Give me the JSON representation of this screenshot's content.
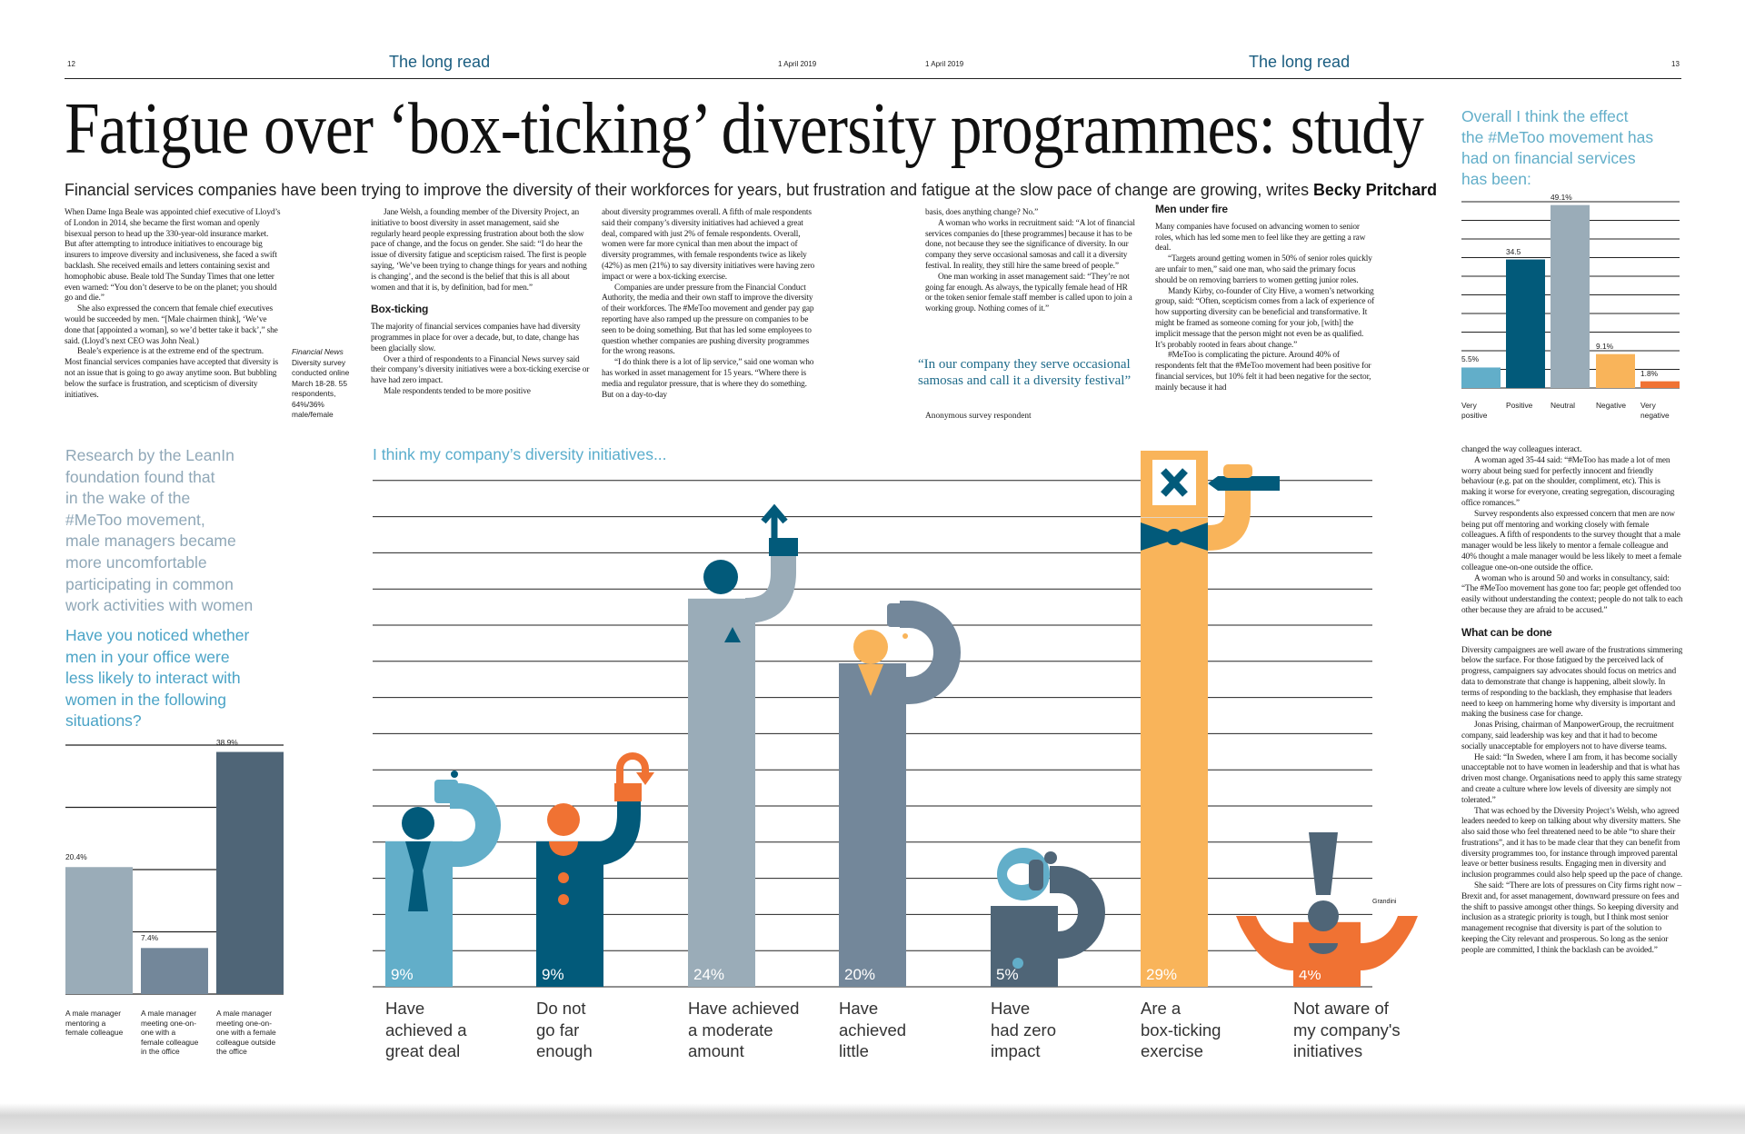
{
  "header": {
    "left_page_number": "12",
    "right_page_number": "13",
    "section_left": "The long read",
    "section_right": "The long read",
    "date_left": "1 April 2019",
    "date_right": "1 April 2019"
  },
  "article": {
    "headline": "Fatigue over ‘box-ticking’ diversity programmes: study",
    "standfirst": "Financial services companies have been trying to improve the diversity of their workforces for years, but frustration and fatigue at the slow pace of change are growing, writes",
    "byline": "Becky Pritchard",
    "survey_note": {
      "source": "Financial News",
      "text": "Diversity survey conducted online March 18-28. 55 respondents, 64%/36% male/female"
    },
    "columns": [
      {
        "blocks": [
          {
            "type": "p",
            "text": "When Dame Inga Beale was appointed chief executive of Lloyd’s of London in 2014, she became the first woman and openly bisexual person to head up the 330-year-old insurance market. But after attempting to introduce initiatives to encourage big insurers to improve diversity and inclusiveness, she faced a swift backlash. She received emails and letters containing sexist and homophobic abuse. Beale told The Sunday Times that one letter even warned: “You don’t deserve to be on the planet; you should go and die.”",
            "noindent": true
          },
          {
            "type": "p",
            "text": "She also expressed the concern that female chief executives would be succeeded by men. “[Male chairmen think], ‘We’ve done that [appointed a woman], so we’d better take it back’,” she said. (Lloyd’s next CEO was John Neal.)"
          },
          {
            "type": "p",
            "text": "Beale’s experience is at the extreme end of the spectrum. Most financial services companies have accepted that diversity is not an issue that is going to go away anytime soon. But bubbling below the surface is frustration, and scepticism of diversity initiatives."
          }
        ]
      },
      {
        "blocks": [
          {
            "type": "p",
            "text": "Jane Welsh, a founding member of the Diversity Project, an initiative to boost diversity in asset management, said she regularly heard people expressing frustration about both the slow pace of change, and the focus on gender. She said: “I do hear the issue of diversity fatigue and scepticism raised. The first is people saying, ‘We’ve been trying to change things for years and nothing is changing’, and the second is the belief that this is all about women and that it is, by definition, bad for men.”"
          },
          {
            "type": "h",
            "text": "Box-ticking"
          },
          {
            "type": "p",
            "text": "The majority of financial services companies have had diversity programmes in place for over a decade, but, to date, change has been glacially slow.",
            "noindent": true
          },
          {
            "type": "p",
            "text": "Over a third of respondents to a Financial News survey said their company’s diversity initiatives were a box-ticking exercise or have had zero impact."
          },
          {
            "type": "p",
            "text": "Male respondents tended to be more positive"
          }
        ]
      },
      {
        "blocks": [
          {
            "type": "p",
            "text": "about diversity programmes overall. A fifth of male respondents said their company’s diversity initiatives had achieved a great deal, compared with just 2% of female respondents. Overall, women were far more cynical than men about the impact of diversity programmes, with female respondents twice as likely (42%) as men (21%) to say diversity initiatives were having zero impact or were a box-ticking exercise.",
            "noindent": true
          },
          {
            "type": "p",
            "text": "Companies are under pressure from the Financial Conduct Authority, the media and their own staff to improve the diversity of their workforces. The #MeToo movement and gender pay gap reporting have also ramped up the pressure on companies to be seen to be doing something. But that has led some employees to question whether companies are pushing diversity programmes for the wrong reasons."
          },
          {
            "type": "p",
            "text": "“I do think there is a lot of lip service,” said one woman who has worked in asset management for 15 years. “Where there is media and regulator pressure, that is where they do something. But on a day-to-day"
          }
        ]
      },
      {
        "blocks": [
          {
            "type": "p",
            "text": "basis, does anything change? No.”",
            "noindent": true
          },
          {
            "type": "p",
            "text": "A woman who works in recruitment said: “A lot of financial services companies do [these programmes] because it has to be done, not because they see the significance of diversity. In our company they serve occasional samosas and call it a diversity festival. In reality, they still hire the same breed of people.”"
          },
          {
            "type": "p",
            "text": "One man working in asset management said: “They’re not going far enough. As always, the typically female head of HR or the token senior female staff member is called upon to join a working group. Nothing comes of it.”"
          }
        ]
      },
      {
        "blocks": [
          {
            "type": "h",
            "text": "Men under fire"
          },
          {
            "type": "p",
            "text": "Many companies have focused on advancing women to senior roles, which has led some men to feel like they are getting a raw deal.",
            "noindent": true
          },
          {
            "type": "p",
            "text": "“Targets around getting women in 50% of senior roles quickly are unfair to men,” said one man, who said the primary focus should be on removing barriers to women getting junior roles."
          },
          {
            "type": "p",
            "text": "Mandy Kirby, co-founder of City Hive, a women’s networking group, said: “Often, scepticism comes from a lack of experience of how supporting diversity can be beneficial and transformative. It might be framed as someone coming for your job, [with] the implicit message that the person might not even be as qualified. It’s probably rooted in fears about change.”"
          },
          {
            "type": "p",
            "text": "#MeToo is complicating the picture. Around 40% of respondents felt that the #MeToo movement had been positive for financial services, but 10% felt it had been negative for the sector, mainly because it had"
          }
        ]
      },
      {
        "blocks": [
          {
            "type": "p",
            "text": "changed the way colleagues interact.",
            "noindent": true
          },
          {
            "type": "p",
            "text": "A woman aged 35-44 said: “#MeToo has made a lot of men worry about being sued for perfectly innocent and friendly behaviour (e.g. pat on the shoulder, compliment, etc). This is making it worse for everyone, creating segregation, discouraging office romances.”"
          },
          {
            "type": "p",
            "text": "Survey respondents also expressed concern that men are now being put off mentoring and working closely with female colleagues. A fifth of respondents to the survey thought that a male manager would be less likely to mentor a female colleague and 40% thought a male manager would be less likely to meet a female colleague one-on-one outside the office."
          },
          {
            "type": "p",
            "text": "A woman who is around 50 and works in consultancy, said: “The #MeToo movement has gone too far; people get offended too easily without understanding the context; people do not talk to each other because they are afraid to be accused.”"
          },
          {
            "type": "h",
            "text": "What can be done"
          },
          {
            "type": "p",
            "text": "Diversity campaigners are well aware of the frustrations simmering below the surface. For those fatigued by the perceived lack of progress, campaigners say advocates should focus on metrics and data to demonstrate that change is happening, albeit slowly. In terms of responding to the backlash, they emphasise that leaders need to keep on hammering home why diversity is important and making the business case for change.",
            "noindent": true
          },
          {
            "type": "p",
            "text": "Jonas Prising, chairman of ManpowerGroup, the recruitment company, said leadership was key and that it had to become socially unacceptable for employers not to have diverse teams."
          },
          {
            "type": "p",
            "text": "He said: “In Sweden, where I am from, it has become socially unacceptable not to have women in leadership and that is what has driven most change. Organisations need to apply this same strategy and create a culture where low levels of diversity are simply not tolerated.”"
          },
          {
            "type": "p",
            "text": "That was echoed by the Diversity Project’s Welsh, who agreed leaders needed to keep on talking about why diversity matters. She also said those who feel threatened need to be able “to share their frustrations”, and it has to be made clear that they can benefit from diversity programmes too, for instance through improved parental leave or better business results. Engaging men in diversity and inclusion programmes could also help speed up the pace of change."
          },
          {
            "type": "p",
            "text": "She said: “There are lots of pressures on City firms right now – Brexit and, for asset management, downward pressure on fees and the shift to passive amongst other things. So keeping diversity and inclusion as a strategic priority is tough, but I think most senior management recognise that diversity is part of the solution to keeping the City relevant and prosperous. So long as the senior people are committed, I think the backlash can be avoided.”"
          }
        ]
      }
    ],
    "pull_quote": "“In our company they serve occasional samosas and call it a diversity festival”",
    "pull_quote_attribution": "Anonymous survey respondent"
  },
  "left_sidebar": {
    "intro_lines": [
      "Research by the LeanIn",
      "foundation found that",
      "in the wake of the",
      "#MeToo movement,",
      "male managers became",
      "more uncomfortable",
      "participating in common",
      "work activities with women"
    ],
    "question_lines": [
      "Have you noticed whether",
      "men in your office were",
      "less likely to interact with",
      "women in the following",
      "situations?"
    ]
  },
  "right_sidebar": {
    "title_lines": [
      "Overall I think the effect",
      "the #MeToo movement has",
      "had on financial services",
      "has been:"
    ]
  },
  "illustration_credit": "Grandini",
  "colors": {
    "light_blue": "#62aec9",
    "dark_teal": "#025a7a",
    "grey_blue": "#9aacb8",
    "slate": "#73879a",
    "dark_slate": "#4f6577",
    "yellow": "#f9b45a",
    "orange": "#f07233",
    "section_blue": "#1a5d80"
  },
  "chart_data": [
    {
      "type": "bar",
      "title": "I think my company’s diversity initiatives...",
      "categories": [
        "Have\nachieved a\ngreat deal",
        "Do not\ngo far\nenough",
        "Have achieved\na moderate\namount",
        "Have\nachieved\nlittle",
        "Have\nhad zero\nimpact",
        "Are a\nbox-ticking\nexercise",
        "Not aware of\nmy company's\ninitiatives"
      ],
      "values": [
        9,
        9,
        24,
        20,
        5,
        29,
        4
      ],
      "value_labels": [
        "9%",
        "9%",
        "24%",
        "20%",
        "5%",
        "29%",
        "4%"
      ],
      "colors": [
        "#62aec9",
        "#025a7a",
        "#9aacb8",
        "#73879a",
        "#4f6577",
        "#f9b45a",
        "#f07233"
      ],
      "ylim": [
        0,
        31
      ],
      "grid": true
    },
    {
      "type": "bar",
      "title": "Have you noticed whether men in your office were less likely to interact with women in the following situations?",
      "categories": [
        "A male manager\nmentoring a\nfemale colleague",
        "A male manager\nmeeting one-on-\none with a\nfemale colleague\nin the office",
        "A male manager\nmeeting one-on-\none with a female\ncolleague outside\nthe office"
      ],
      "values": [
        20.4,
        7.4,
        38.9
      ],
      "value_labels": [
        "20.4%",
        "7.4%",
        "38.9%"
      ],
      "colors": [
        "#9aacb8",
        "#73879a",
        "#4f6577"
      ],
      "ylim": [
        0,
        40
      ],
      "grid": true
    },
    {
      "type": "bar",
      "title": "Overall I think the effect the #MeToo movement has had on financial services has been:",
      "categories": [
        "Very\npositive",
        "Positive",
        "Neutral",
        "Negative",
        "Very\nnegative"
      ],
      "values": [
        5.5,
        34.5,
        49.1,
        9.1,
        1.8
      ],
      "value_labels": [
        "5.5%",
        "34.5",
        "49.1%",
        "9.1%",
        "1.8%"
      ],
      "colors": [
        "#62aec9",
        "#025a7a",
        "#9aacb8",
        "#f9b45a",
        "#f07233"
      ],
      "ylim": [
        0,
        50
      ],
      "grid": true
    }
  ]
}
